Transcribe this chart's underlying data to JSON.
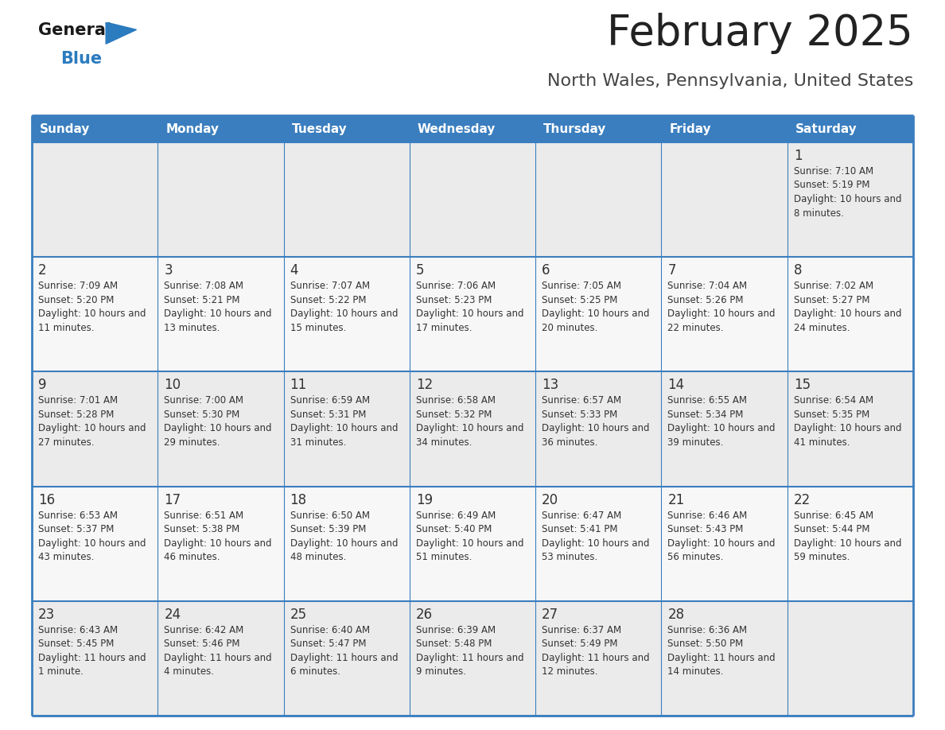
{
  "title": "February 2025",
  "subtitle": "North Wales, Pennsylvania, United States",
  "days_of_week": [
    "Sunday",
    "Monday",
    "Tuesday",
    "Wednesday",
    "Thursday",
    "Friday",
    "Saturday"
  ],
  "header_bg": "#3a7ebf",
  "header_text": "#ffffff",
  "cell_bg_odd": "#ebebeb",
  "cell_bg_even": "#f7f7f7",
  "border_color": "#3a7ebf",
  "day_num_color": "#333333",
  "info_text_color": "#333333",
  "title_color": "#222222",
  "subtitle_color": "#444444",
  "logo_general_color": "#1a1a1a",
  "logo_blue_color": "#2b7bbf",
  "calendar_data": [
    [
      null,
      null,
      null,
      null,
      null,
      null,
      {
        "day": 1,
        "sunrise": "7:10 AM",
        "sunset": "5:19 PM",
        "daylight": "10 hours and 8 minutes."
      }
    ],
    [
      {
        "day": 2,
        "sunrise": "7:09 AM",
        "sunset": "5:20 PM",
        "daylight": "10 hours and 11 minutes."
      },
      {
        "day": 3,
        "sunrise": "7:08 AM",
        "sunset": "5:21 PM",
        "daylight": "10 hours and 13 minutes."
      },
      {
        "day": 4,
        "sunrise": "7:07 AM",
        "sunset": "5:22 PM",
        "daylight": "10 hours and 15 minutes."
      },
      {
        "day": 5,
        "sunrise": "7:06 AM",
        "sunset": "5:23 PM",
        "daylight": "10 hours and 17 minutes."
      },
      {
        "day": 6,
        "sunrise": "7:05 AM",
        "sunset": "5:25 PM",
        "daylight": "10 hours and 20 minutes."
      },
      {
        "day": 7,
        "sunrise": "7:04 AM",
        "sunset": "5:26 PM",
        "daylight": "10 hours and 22 minutes."
      },
      {
        "day": 8,
        "sunrise": "7:02 AM",
        "sunset": "5:27 PM",
        "daylight": "10 hours and 24 minutes."
      }
    ],
    [
      {
        "day": 9,
        "sunrise": "7:01 AM",
        "sunset": "5:28 PM",
        "daylight": "10 hours and 27 minutes."
      },
      {
        "day": 10,
        "sunrise": "7:00 AM",
        "sunset": "5:30 PM",
        "daylight": "10 hours and 29 minutes."
      },
      {
        "day": 11,
        "sunrise": "6:59 AM",
        "sunset": "5:31 PM",
        "daylight": "10 hours and 31 minutes."
      },
      {
        "day": 12,
        "sunrise": "6:58 AM",
        "sunset": "5:32 PM",
        "daylight": "10 hours and 34 minutes."
      },
      {
        "day": 13,
        "sunrise": "6:57 AM",
        "sunset": "5:33 PM",
        "daylight": "10 hours and 36 minutes."
      },
      {
        "day": 14,
        "sunrise": "6:55 AM",
        "sunset": "5:34 PM",
        "daylight": "10 hours and 39 minutes."
      },
      {
        "day": 15,
        "sunrise": "6:54 AM",
        "sunset": "5:35 PM",
        "daylight": "10 hours and 41 minutes."
      }
    ],
    [
      {
        "day": 16,
        "sunrise": "6:53 AM",
        "sunset": "5:37 PM",
        "daylight": "10 hours and 43 minutes."
      },
      {
        "day": 17,
        "sunrise": "6:51 AM",
        "sunset": "5:38 PM",
        "daylight": "10 hours and 46 minutes."
      },
      {
        "day": 18,
        "sunrise": "6:50 AM",
        "sunset": "5:39 PM",
        "daylight": "10 hours and 48 minutes."
      },
      {
        "day": 19,
        "sunrise": "6:49 AM",
        "sunset": "5:40 PM",
        "daylight": "10 hours and 51 minutes."
      },
      {
        "day": 20,
        "sunrise": "6:47 AM",
        "sunset": "5:41 PM",
        "daylight": "10 hours and 53 minutes."
      },
      {
        "day": 21,
        "sunrise": "6:46 AM",
        "sunset": "5:43 PM",
        "daylight": "10 hours and 56 minutes."
      },
      {
        "day": 22,
        "sunrise": "6:45 AM",
        "sunset": "5:44 PM",
        "daylight": "10 hours and 59 minutes."
      }
    ],
    [
      {
        "day": 23,
        "sunrise": "6:43 AM",
        "sunset": "5:45 PM",
        "daylight": "11 hours and 1 minute."
      },
      {
        "day": 24,
        "sunrise": "6:42 AM",
        "sunset": "5:46 PM",
        "daylight": "11 hours and 4 minutes."
      },
      {
        "day": 25,
        "sunrise": "6:40 AM",
        "sunset": "5:47 PM",
        "daylight": "11 hours and 6 minutes."
      },
      {
        "day": 26,
        "sunrise": "6:39 AM",
        "sunset": "5:48 PM",
        "daylight": "11 hours and 9 minutes."
      },
      {
        "day": 27,
        "sunrise": "6:37 AM",
        "sunset": "5:49 PM",
        "daylight": "11 hours and 12 minutes."
      },
      {
        "day": 28,
        "sunrise": "6:36 AM",
        "sunset": "5:50 PM",
        "daylight": "11 hours and 14 minutes."
      },
      null
    ]
  ]
}
